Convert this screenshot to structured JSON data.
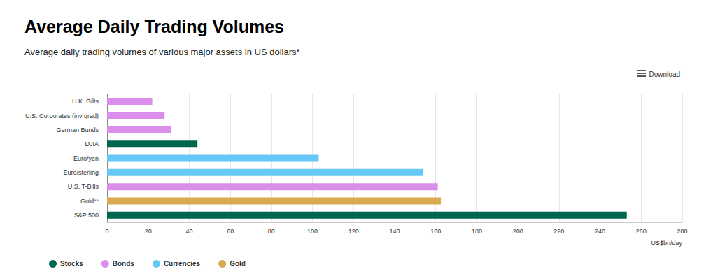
{
  "chart_data": {
    "type": "bar",
    "orientation": "horizontal",
    "title": "Average Daily Trading Volumes",
    "subtitle": "Average daily trading volumes of various major assets in US dollars*",
    "x_label": "US$bn/day",
    "annotations": [
      "Download"
    ],
    "categories": [
      "U.K. Gilts",
      "U.S. Corporates (inv grad)",
      "German Bunds",
      "DJIA",
      "Euro/yen",
      "Euro/sterling",
      "U.S. T-Bills",
      "Gold**",
      "S&P 500"
    ],
    "series": [
      {
        "name": "Stocks",
        "color": "#00664f",
        "values": [
          null,
          null,
          null,
          44,
          null,
          null,
          null,
          null,
          253
        ]
      },
      {
        "name": "Bonds",
        "color": "#da8ee9",
        "values": [
          22,
          28,
          31,
          null,
          null,
          null,
          161,
          null,
          null
        ]
      },
      {
        "name": "Currencies",
        "color": "#66c8f6",
        "values": [
          null,
          null,
          null,
          null,
          103,
          154,
          null,
          null,
          null
        ]
      },
      {
        "name": "Gold",
        "color": "#d9aa50",
        "values": [
          null,
          null,
          null,
          null,
          null,
          null,
          null,
          162.5,
          null
        ]
      }
    ],
    "xlim": [
      0,
      280
    ],
    "xticks": [
      0,
      20,
      40,
      60,
      80,
      100,
      120,
      140,
      160,
      180,
      200,
      220,
      240,
      260,
      280
    ],
    "grid": true,
    "legend": "bottom-left"
  }
}
